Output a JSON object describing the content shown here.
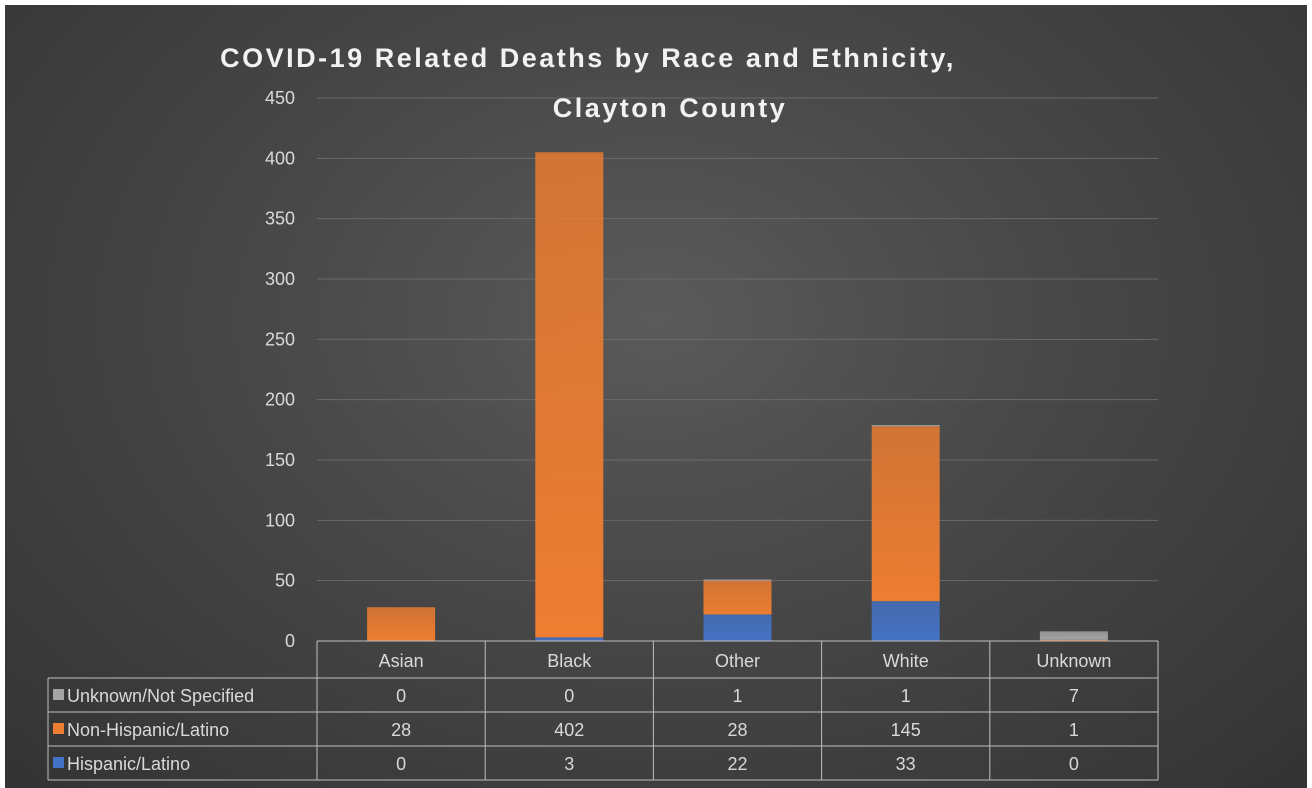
{
  "chart_data": {
    "type": "bar",
    "stacked": true,
    "title": "COVID-19 Related Deaths by Race and Ethnicity,",
    "title_line2": "Clayton County",
    "categories": [
      "Asian",
      "Black",
      "Other",
      "White",
      "Unknown"
    ],
    "ylim": [
      0,
      450
    ],
    "yticks": [
      "0",
      "50",
      "100",
      "150",
      "200",
      "250",
      "300",
      "350",
      "400",
      "450"
    ],
    "grid": true,
    "legend": "data-table",
    "series": [
      {
        "name": "Hispanic/Latino",
        "values": [
          0,
          3,
          22,
          33,
          0
        ],
        "color": "#4472c4"
      },
      {
        "name": "Non-Hispanic/Latino",
        "values": [
          28,
          402,
          28,
          145,
          1
        ],
        "color": "#ed7d31"
      },
      {
        "name": "Unknown/Not Specified",
        "values": [
          0,
          0,
          1,
          1,
          7
        ],
        "color": "#a5a5a5"
      }
    ],
    "table_row_order": [
      2,
      1,
      0
    ]
  }
}
